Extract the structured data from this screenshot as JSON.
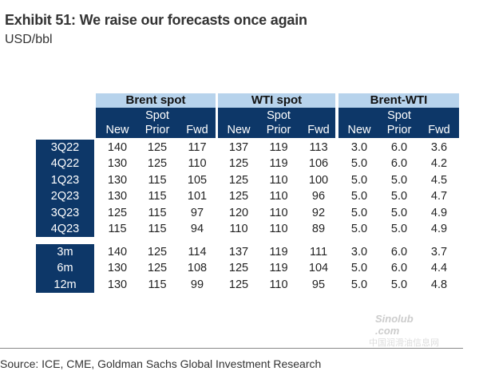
{
  "title": "Exhibit 51: We raise our forecasts once again",
  "unit": "USD/bbl",
  "groups": [
    "Brent spot",
    "WTI spot",
    "Brent-WTI"
  ],
  "subheaders": {
    "spot": "Spot",
    "cols": [
      "New",
      "Prior",
      "Fwd"
    ]
  },
  "block1": [
    {
      "label": "3Q22",
      "v": [
        "140",
        "125",
        "117",
        "137",
        "119",
        "113",
        "3.0",
        "6.0",
        "3.6"
      ]
    },
    {
      "label": "4Q22",
      "v": [
        "130",
        "125",
        "110",
        "125",
        "119",
        "106",
        "5.0",
        "6.0",
        "4.2"
      ]
    },
    {
      "label": "1Q23",
      "v": [
        "130",
        "115",
        "105",
        "125",
        "110",
        "100",
        "5.0",
        "5.0",
        "4.5"
      ]
    },
    {
      "label": "2Q23",
      "v": [
        "130",
        "115",
        "101",
        "125",
        "110",
        "96",
        "5.0",
        "5.0",
        "4.7"
      ]
    },
    {
      "label": "3Q23",
      "v": [
        "125",
        "115",
        "97",
        "120",
        "110",
        "92",
        "5.0",
        "5.0",
        "4.9"
      ]
    },
    {
      "label": "4Q23",
      "v": [
        "115",
        "115",
        "94",
        "110",
        "110",
        "89",
        "5.0",
        "5.0",
        "4.9"
      ]
    }
  ],
  "block2": [
    {
      "label": "3m",
      "v": [
        "140",
        "125",
        "114",
        "137",
        "119",
        "111",
        "3.0",
        "6.0",
        "3.7"
      ]
    },
    {
      "label": "6m",
      "v": [
        "130",
        "125",
        "108",
        "125",
        "119",
        "104",
        "5.0",
        "6.0",
        "4.4"
      ]
    },
    {
      "label": "12m",
      "v": [
        "130",
        "115",
        "99",
        "125",
        "110",
        "95",
        "5.0",
        "5.0",
        "4.8"
      ]
    }
  ],
  "source": "Source: ICE, CME, Goldman Sachs Global Investment Research",
  "watermark": {
    "logo": "Sinolub .com",
    "text": "中国润滑油信息网"
  },
  "colors": {
    "header_dark": "#0d3768",
    "header_light": "#b7d3ec"
  }
}
